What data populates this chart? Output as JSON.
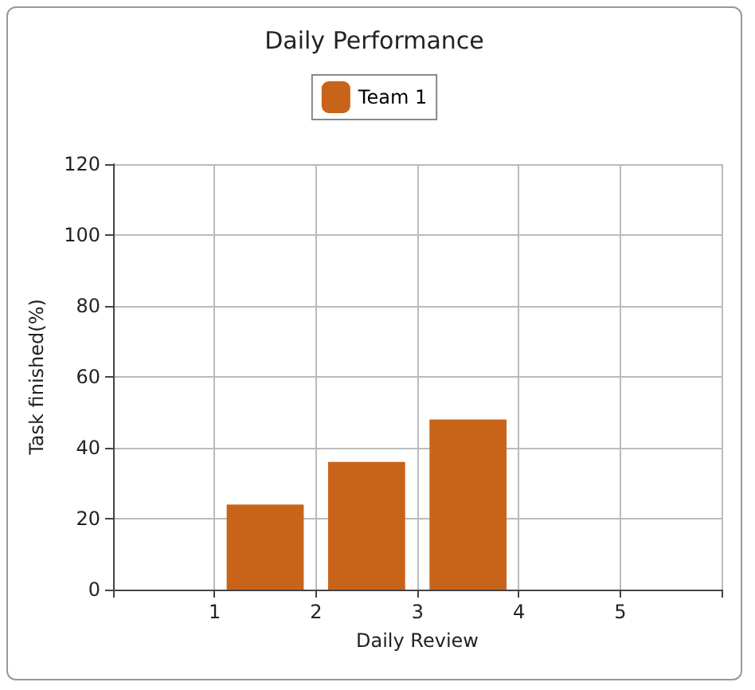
{
  "chart_data": {
    "type": "bar",
    "title": "Daily Performance",
    "xlabel": "Daily Review",
    "ylabel": "Task finished(%)",
    "categories": [
      null,
      "1",
      "2",
      "3",
      "4",
      "5"
    ],
    "series": [
      {
        "name": "Team 1",
        "color": "#c8641a",
        "values": [
          null,
          24,
          36,
          48,
          null,
          null
        ]
      }
    ],
    "ylim": [
      0,
      120
    ],
    "yticks": [
      0,
      20,
      40,
      60,
      80,
      100,
      120
    ],
    "grid": true,
    "legend": "top"
  }
}
